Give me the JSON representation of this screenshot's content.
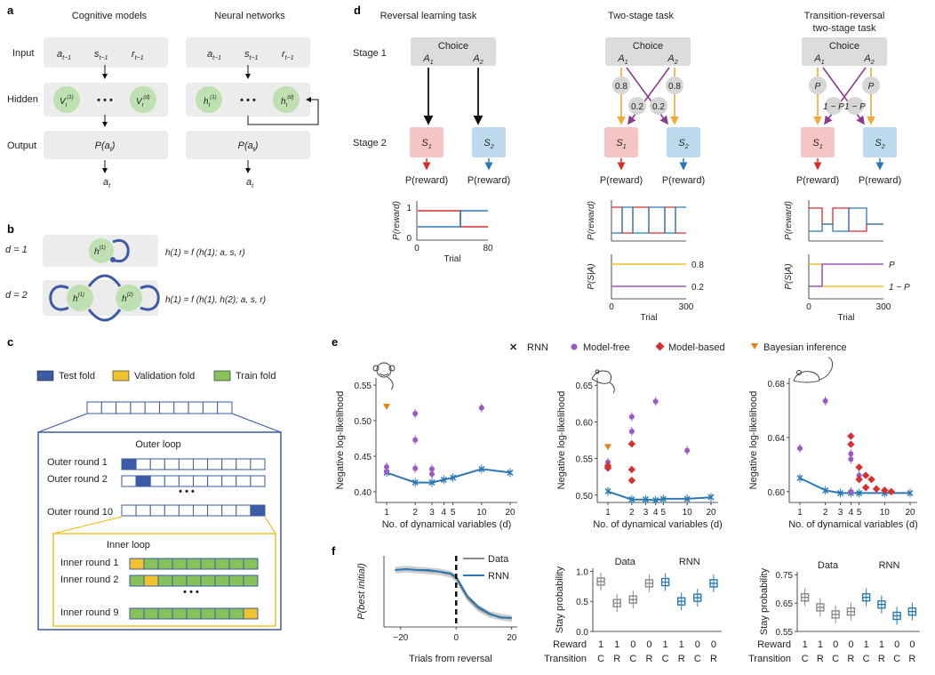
{
  "panels": {
    "a": "a",
    "b": "b",
    "c": "c",
    "d": "d",
    "e": "e",
    "f": "f"
  },
  "a": {
    "col1": "Cognitive models",
    "col2": "Neural networks",
    "rows": [
      "Input",
      "Hidden",
      "Output"
    ],
    "inputs": [
      "a",
      "s",
      "r"
    ],
    "input_sub": "t−1",
    "cog_hidden": [
      "V",
      "V"
    ],
    "cog_hidden_sup": [
      "(1)",
      "(d)"
    ],
    "nn_hidden": [
      "h",
      "h"
    ],
    "nn_hidden_sup": [
      "(1)",
      "(d)"
    ],
    "t_sub": "t",
    "dots": "• • •",
    "output": "P(a",
    "output_close": ")",
    "action": "a"
  },
  "b": {
    "d1_label": "d = 1",
    "d2_label": "d = 2",
    "eq1": "h(1) = f (h(1); a, s, r)",
    "eq2": "h(1) = f (h(1), h(2); a, s, r)"
  },
  "c": {
    "legend": [
      "Test fold",
      "Validation fold",
      "Train fold"
    ],
    "outer_title": "Outer loop",
    "outer_rounds": [
      "Outer round 1",
      "Outer round 2",
      "Outer round 10"
    ],
    "inner_title": "Inner loop",
    "inner_rounds": [
      "Inner round 1",
      "Inner round 2",
      "Inner round 9"
    ],
    "vdots": "• • •"
  },
  "d": {
    "titles": [
      "Reversal learning task",
      "Two-stage task",
      "Transition-reversal",
      "two-stage task"
    ],
    "stage1": "Stage 1",
    "stage2": "Stage 2",
    "choice": "Choice",
    "A1": "A1",
    "A2": "A2",
    "S1": "S1",
    "S2": "S2",
    "reward": "P(reward)",
    "probs_two": [
      "0.8",
      "0.2",
      "0.2",
      "0.8"
    ],
    "probs_trans": [
      "P",
      "1 − P",
      "1 − P",
      "P"
    ],
    "ylabel_reward": "P(reward)",
    "ylabel_trans": "P(S|A)",
    "xlabel": "Trial",
    "ticks_rev": [
      "0",
      "80"
    ],
    "ticks_two": [
      "0",
      "300"
    ],
    "yt_rev": [
      "1",
      "0"
    ],
    "trans_right_two": [
      "0.8",
      "0.2"
    ],
    "trans_right_tr": [
      "P",
      "1 − P"
    ]
  },
  "e": {
    "legend": [
      "RNN",
      "Model-free",
      "Model-based",
      "Bayesian inference"
    ],
    "ylabel": "Negative log-likelihood",
    "xlabel": "No. of dynamical variables (d)",
    "xticks": [
      "1",
      "2",
      "3",
      "4",
      "5",
      "10",
      "20"
    ],
    "colors": {
      "rnn": "#2a79b5",
      "mf": "#9b59c4",
      "mb": "#d62f2f",
      "bayes": "#ef7f1a"
    }
  },
  "chart_data": [
    {
      "type": "scatter",
      "ylabel": "Negative log-likelihood",
      "xlabel": "No. of dynamical variables (d)",
      "ylim": [
        0.385,
        0.56
      ],
      "yticks": [
        "0.55",
        "0.50",
        "0.45",
        "0.40"
      ],
      "series": [
        {
          "name": "RNN",
          "x": [
            1,
            2,
            3,
            4,
            5,
            10,
            20
          ],
          "y": [
            0.427,
            0.413,
            0.413,
            0.417,
            0.42,
            0.432,
            0.427
          ]
        },
        {
          "name": "Model-free",
          "x": [
            1,
            1,
            2,
            2,
            2,
            3,
            3,
            10
          ],
          "y": [
            0.435,
            0.428,
            0.51,
            0.473,
            0.433,
            0.432,
            0.425,
            0.518
          ]
        },
        {
          "name": "Bayesian inference",
          "x": [
            1
          ],
          "y": [
            0.52
          ]
        }
      ]
    },
    {
      "type": "scatter",
      "ylabel": "Negative log-likelihood",
      "xlabel": "No. of dynamical variables (d)",
      "ylim": [
        0.49,
        0.66
      ],
      "yticks": [
        "0.65",
        "0.60",
        "0.55",
        "0.50"
      ],
      "series": [
        {
          "name": "RNN",
          "x": [
            1,
            2,
            3,
            4,
            5,
            10,
            20
          ],
          "y": [
            0.505,
            0.494,
            0.494,
            0.493,
            0.495,
            0.495,
            0.497
          ]
        },
        {
          "name": "Model-free",
          "x": [
            1,
            2,
            2,
            4,
            10
          ],
          "y": [
            0.545,
            0.607,
            0.587,
            0.628,
            0.561
          ]
        },
        {
          "name": "Model-based",
          "x": [
            1,
            1,
            2,
            2,
            2
          ],
          "y": [
            0.54,
            0.537,
            0.57,
            0.535,
            0.52
          ]
        },
        {
          "name": "Bayesian inference",
          "x": [
            1
          ],
          "y": [
            0.566
          ]
        }
      ]
    },
    {
      "type": "scatter",
      "ylabel": "Negative log-likelihood",
      "xlabel": "No. of dynamical variables (d)",
      "ylim": [
        0.592,
        0.684
      ],
      "yticks": [
        "0.68",
        "0.64",
        "0.60"
      ],
      "series": [
        {
          "name": "RNN",
          "x": [
            1,
            2,
            3,
            4,
            5,
            10,
            20
          ],
          "y": [
            0.61,
            0.601,
            0.599,
            0.599,
            0.599,
            0.599,
            0.599
          ]
        },
        {
          "name": "Model-free",
          "x": [
            1,
            2,
            4,
            4,
            5,
            4
          ],
          "y": [
            0.632,
            0.667,
            0.628,
            0.624,
            0.612,
            0.6
          ]
        },
        {
          "name": "Model-based",
          "x": [
            4,
            4,
            5,
            5,
            6,
            6,
            7,
            8,
            10,
            12
          ],
          "y": [
            0.641,
            0.635,
            0.618,
            0.609,
            0.612,
            0.603,
            0.609,
            0.602,
            0.601,
            0.6
          ]
        }
      ]
    },
    {
      "type": "line",
      "ylabel": "P(best initial)",
      "xlabel": "Trials from reversal",
      "xticks": [
        "−20",
        "0",
        "20"
      ],
      "series": [
        {
          "name": "Data",
          "x": [
            -22,
            -18,
            -14,
            -10,
            -6,
            -2,
            0,
            4,
            8,
            12,
            16,
            20
          ],
          "y": [
            0.78,
            0.79,
            0.78,
            0.77,
            0.76,
            0.73,
            0.68,
            0.45,
            0.32,
            0.25,
            0.22,
            0.2
          ]
        },
        {
          "name": "RNN",
          "x": [
            -22,
            -18,
            -14,
            -10,
            -6,
            -2,
            0,
            4,
            8,
            12,
            16,
            20
          ],
          "y": [
            0.78,
            0.79,
            0.78,
            0.78,
            0.76,
            0.74,
            0.7,
            0.47,
            0.34,
            0.26,
            0.21,
            0.21
          ]
        }
      ]
    },
    {
      "type": "bar",
      "ylabel": "Stay probability",
      "groups": [
        "Data",
        "RNN"
      ],
      "reward": [
        "1",
        "1",
        "0",
        "0"
      ],
      "transition": [
        "C",
        "R",
        "C",
        "R"
      ],
      "yticks": [
        "1.0",
        "0.5",
        "0.0"
      ],
      "series": [
        {
          "name": "Data",
          "values": [
            0.83,
            0.47,
            0.53,
            0.8
          ]
        },
        {
          "name": "RNN",
          "values": [
            0.82,
            0.5,
            0.56,
            0.8
          ]
        }
      ]
    },
    {
      "type": "bar",
      "ylabel": "Stay probability",
      "groups": [
        "Data",
        "RNN"
      ],
      "reward": [
        "1",
        "1",
        "0",
        "0"
      ],
      "transition": [
        "C",
        "R",
        "C",
        "R"
      ],
      "yticks": [
        "0.75",
        "0.65",
        "0.55"
      ],
      "series": [
        {
          "name": "Data",
          "values": [
            0.67,
            0.635,
            0.61,
            0.62
          ]
        },
        {
          "name": "RNN",
          "values": [
            0.67,
            0.645,
            0.605,
            0.62
          ]
        }
      ]
    }
  ],
  "f": {
    "legend": [
      "Data",
      "RNN"
    ],
    "reward_label": "Reward",
    "transition_label": "Transition",
    "group_labels": [
      "Data",
      "RNN"
    ]
  }
}
